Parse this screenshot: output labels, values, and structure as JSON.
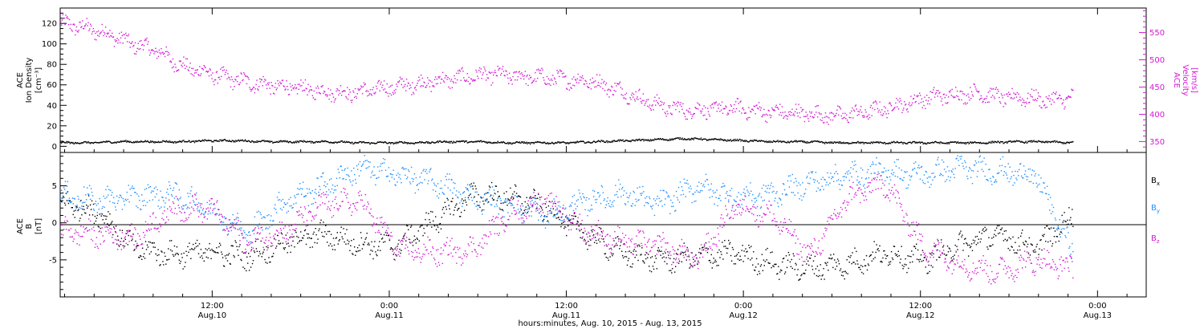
{
  "chart_data": [
    {
      "type": "scatter",
      "panel": "top",
      "ylabel_left": [
        "ACE",
        "Ion Density",
        "[cm⁻³]"
      ],
      "ylabel_right": [
        "ACE",
        "Velocity",
        "[km/s]"
      ],
      "y_left_range": [
        -6,
        135
      ],
      "y_left_ticks": [
        0,
        20,
        40,
        60,
        80,
        100,
        120
      ],
      "y_right_range": [
        330,
        595
      ],
      "y_right_ticks": [
        350,
        400,
        450,
        500,
        550
      ],
      "x_hours": [
        0,
        6,
        12,
        18,
        24,
        30,
        36,
        42,
        48,
        54,
        60,
        66,
        72
      ],
      "velocity_kms": [
        568,
        560,
        548,
        530,
        518,
        490,
        478,
        466,
        458,
        452,
        448,
        442,
        440,
        446,
        452,
        458,
        464,
        470,
        474,
        470,
        468,
        464,
        462,
        448,
        430,
        415,
        408,
        410,
        412,
        406,
        404,
        402,
        398,
        402,
        410,
        420,
        432,
        436,
        440,
        432,
        432,
        426,
        432
      ],
      "density_cm3": [
        4,
        4,
        5,
        5,
        5,
        6,
        6,
        5,
        5,
        5,
        4,
        4,
        4,
        5,
        5,
        4,
        4,
        4,
        5,
        6,
        7,
        8,
        7,
        6,
        5,
        5,
        4,
        4,
        4,
        4,
        4,
        4,
        5,
        5,
        4
      ]
    },
    {
      "type": "scatter",
      "panel": "bottom",
      "ylabel_left": [
        "ACE",
        "B",
        "[nT]"
      ],
      "y_range": [
        -10,
        9.5
      ],
      "y_ticks": [
        -5,
        0,
        5
      ],
      "zero_line": true,
      "series": [
        {
          "name": "Bx",
          "color": "#000000",
          "values": [
            2.8,
            1.5,
            -3.5,
            -4.2,
            -3.8,
            -4.5,
            -2.5,
            -1.5,
            -2.8,
            -3.0,
            0.5,
            3.8,
            3.5,
            2.0,
            -1.5,
            -4.0,
            -5.0,
            -4.5,
            -4.0,
            -5.5,
            -6.0,
            -5.5,
            -4.0,
            -5.0,
            -3.0,
            -1.5,
            -3.5,
            1.0
          ]
        },
        {
          "name": "By",
          "color": "#1e90ff",
          "values": [
            3.8,
            3.0,
            3.5,
            4.0,
            2.0,
            -1.5,
            3.0,
            5.0,
            7.5,
            6.5,
            5.5,
            3.5,
            2.5,
            1.0,
            3.0,
            4.0,
            2.5,
            5.0,
            3.5,
            4.0,
            5.5,
            6.5,
            7.0,
            6.5,
            7.5,
            7.0,
            6.5,
            -4.0
          ]
        },
        {
          "name": "Bz",
          "color": "#d21ad2",
          "values": [
            -1.0,
            -1.5,
            -2.0,
            2.0,
            2.0,
            -2.5,
            -1.0,
            2.5,
            3.0,
            -3.5,
            -4.0,
            -3.5,
            1.5,
            3.0,
            -1.0,
            -2.5,
            -3.0,
            -5.0,
            2.5,
            1.0,
            -4.5,
            3.5,
            5.5,
            -3.0,
            -5.5,
            -6.5,
            -5.0,
            -6.0
          ]
        }
      ]
    }
  ],
  "x_axis": {
    "ticks": [
      {
        "hour": 12,
        "time": "12:00",
        "date": "Aug.10"
      },
      {
        "hour": 24,
        "time": "0:00",
        "date": "Aug.11"
      },
      {
        "hour": 36,
        "time": "12:00",
        "date": "Aug.11"
      },
      {
        "hour": 48,
        "time": "0:00",
        "date": "Aug.12"
      },
      {
        "hour": 60,
        "time": "12:00",
        "date": "Aug.12"
      },
      {
        "hour": 72,
        "time": "0:00",
        "date": "Aug.13"
      }
    ],
    "label": "hours:minutes, Aug. 10, 2015 - Aug. 13, 2015",
    "range_hours": [
      1.7,
      75.3
    ],
    "data_end_hour": 70.3
  },
  "legend": {
    "bx": {
      "base": "B",
      "sub": "x",
      "color": "#000000"
    },
    "by": {
      "base": "B",
      "sub": "y",
      "color": "#1e90ff"
    },
    "bz": {
      "base": "B",
      "sub": "z",
      "color": "#d21ad2"
    }
  },
  "colors": {
    "magenta": "#d21ad2",
    "blue": "#1e90ff",
    "black": "#000000"
  }
}
